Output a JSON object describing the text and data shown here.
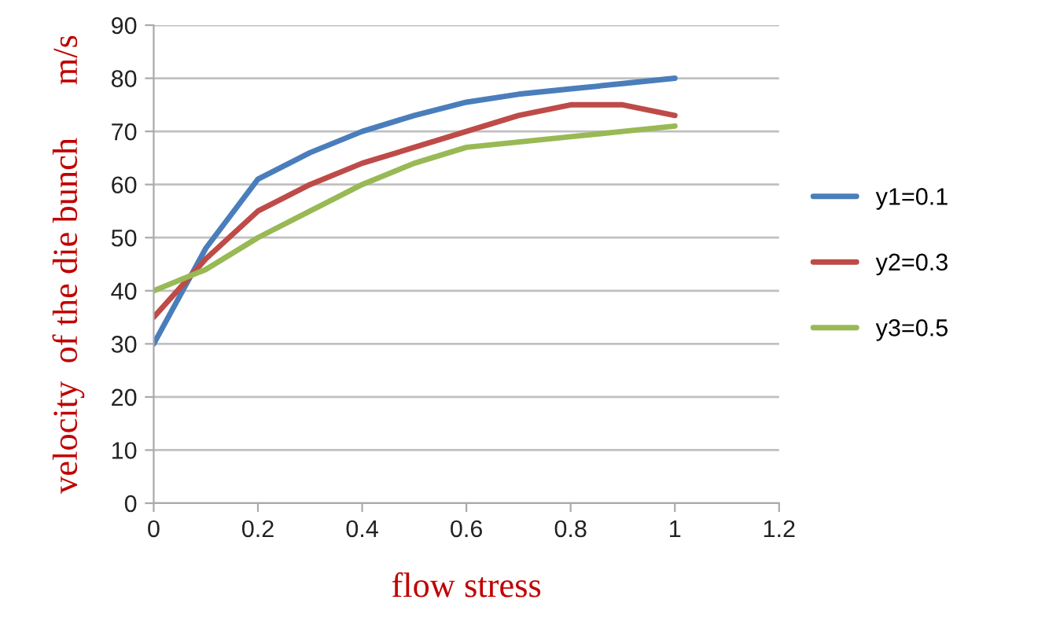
{
  "chart_data": {
    "type": "line",
    "xlabel": "flow stress",
    "ylabel": "velocity  of the die bunch      m/s",
    "x": [
      0,
      0.1,
      0.2,
      0.3,
      0.4,
      0.5,
      0.6,
      0.7,
      0.8,
      0.9,
      1
    ],
    "series": [
      {
        "name": "y1=0.1",
        "color": "#4a7ebb",
        "values": [
          30,
          48,
          61,
          66,
          70,
          73,
          75.5,
          77,
          78,
          79,
          80
        ]
      },
      {
        "name": "y2=0.3",
        "color": "#be4b48",
        "values": [
          35,
          46,
          55,
          60,
          64,
          67,
          70,
          73,
          75,
          75,
          73
        ]
      },
      {
        "name": "y3=0.5",
        "color": "#98b954",
        "values": [
          40,
          44,
          50,
          55,
          60,
          64,
          67,
          68,
          69,
          70,
          71
        ]
      }
    ],
    "xlim": [
      0,
      1.2
    ],
    "xticks": [
      0,
      0.2,
      0.4,
      0.6,
      0.8,
      1,
      1.2
    ],
    "ylim": [
      0,
      90
    ],
    "yticks": [
      0,
      10,
      20,
      30,
      40,
      50,
      60,
      70,
      80,
      90
    ],
    "grid": "y",
    "legend": "right",
    "marker": "none",
    "line_style": "solid"
  }
}
